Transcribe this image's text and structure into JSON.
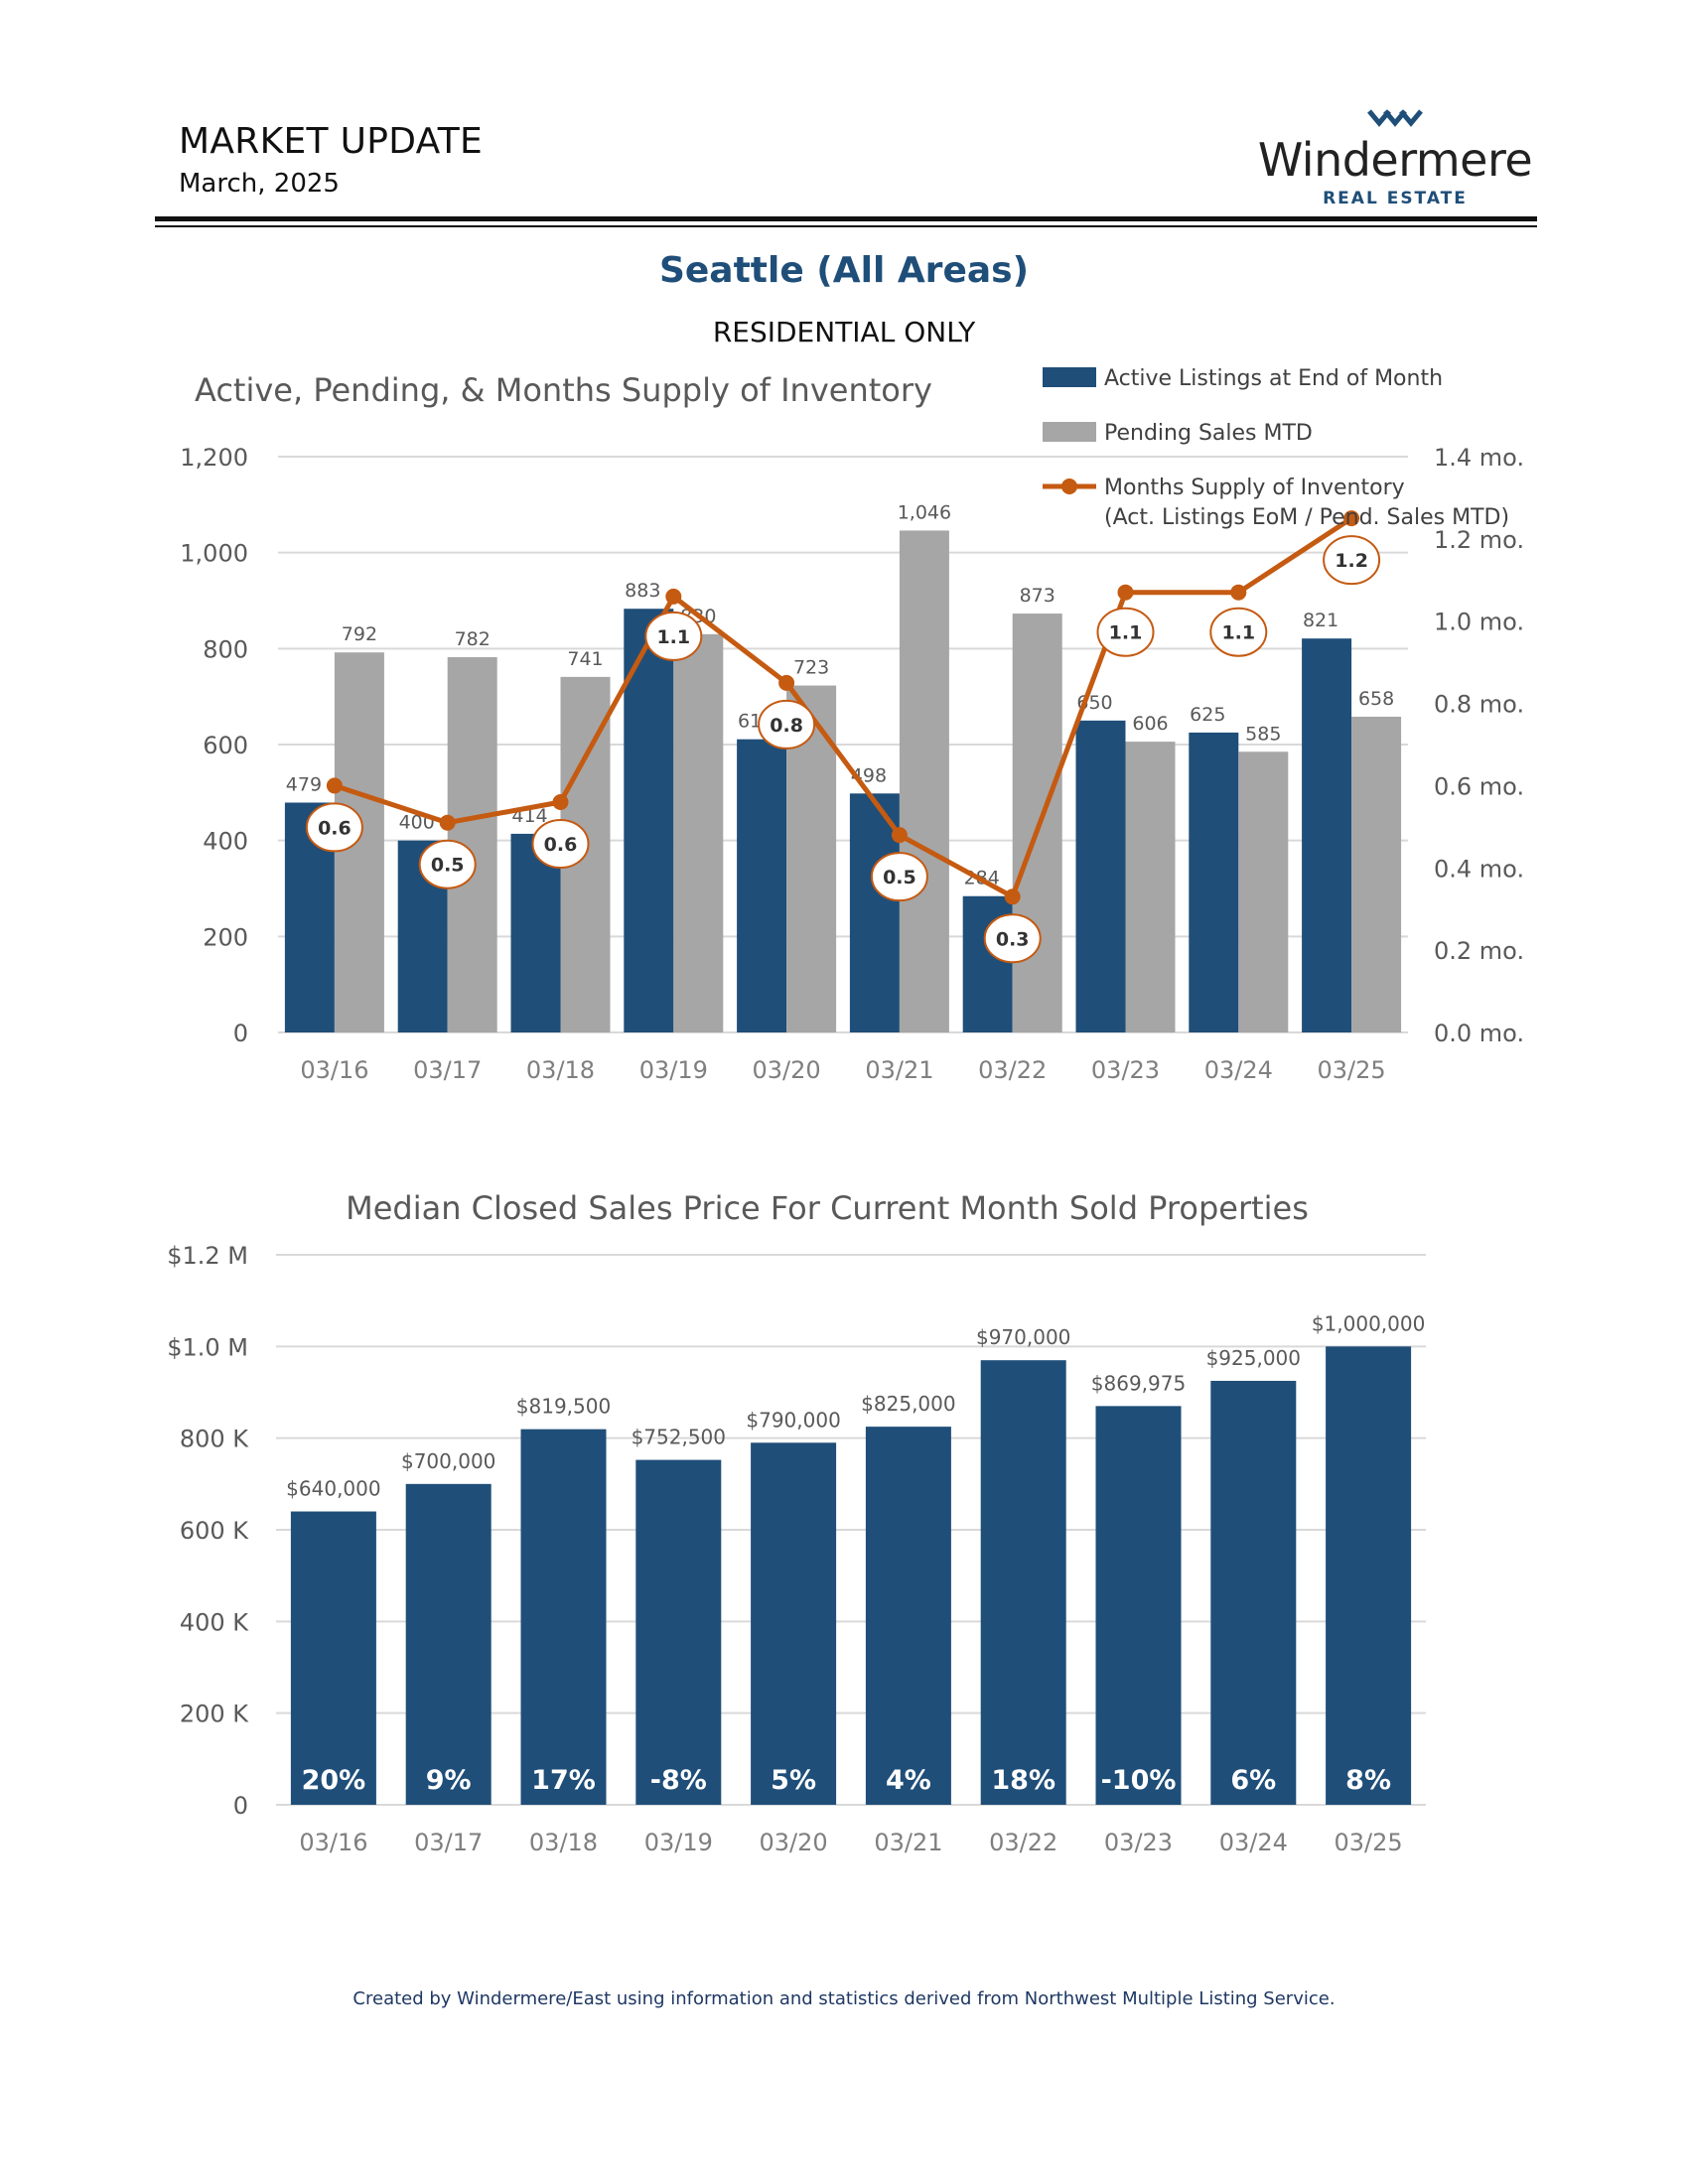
{
  "header": {
    "title": "MARKET UPDATE",
    "date": "March, 2025",
    "logo_word": "Windermere",
    "logo_sub": "REAL ESTATE",
    "area": "Seattle (All Areas)",
    "subhead": "RESIDENTIAL ONLY"
  },
  "colors": {
    "navy": "#1f4e79",
    "gray": "#a6a6a6",
    "orange": "#c55a11",
    "grid": "#d9d9d9"
  },
  "chart_data": [
    {
      "type": "bar",
      "title": "Active, Pending, & Months Supply of Inventory",
      "categories": [
        "03/16",
        "03/17",
        "03/18",
        "03/19",
        "03/20",
        "03/21",
        "03/22",
        "03/23",
        "03/24",
        "03/25"
      ],
      "series": [
        {
          "name": "Active Listings at End of Month",
          "type": "bar",
          "axis": "left",
          "values": [
            479,
            400,
            414,
            883,
            611,
            498,
            284,
            650,
            625,
            821
          ],
          "labels": [
            "479",
            "400",
            "414",
            "883",
            "611",
            "498",
            "284",
            "650",
            "625",
            "821"
          ]
        },
        {
          "name": "Pending Sales MTD",
          "type": "bar",
          "axis": "left",
          "values": [
            792,
            782,
            741,
            830,
            723,
            1046,
            873,
            606,
            585,
            658
          ],
          "labels": [
            "792",
            "782",
            "741",
            "830",
            "723",
            "1,046",
            "873",
            "606",
            "585",
            "658"
          ]
        },
        {
          "name": "Months Supply of Inventory (Act. Listings EoM / Pend. Sales MTD)",
          "legend_lines": [
            "Months Supply of Inventory",
            "(Act. Listings EoM / Pend. Sales MTD)"
          ],
          "type": "line",
          "axis": "right",
          "values": [
            0.6,
            0.51,
            0.56,
            1.06,
            0.85,
            0.48,
            0.33,
            1.07,
            1.07,
            1.25
          ],
          "labels": [
            "0.6",
            "0.5",
            "0.6",
            "1.1",
            "0.8",
            "0.5",
            "0.3",
            "1.1",
            "1.1",
            "1.2"
          ]
        }
      ],
      "left_axis": {
        "ylim": [
          0,
          1200
        ],
        "ticks": [
          0,
          200,
          400,
          600,
          800,
          1000,
          1200
        ],
        "tick_labels": [
          "0",
          "200",
          "400",
          "600",
          "800",
          "1,000",
          "1,200"
        ]
      },
      "right_axis": {
        "ylim": [
          0,
          1.4
        ],
        "ticks": [
          0,
          0.2,
          0.4,
          0.6,
          0.8,
          1.0,
          1.2,
          1.4
        ],
        "tick_labels": [
          "0.0 mo.",
          "0.2 mo.",
          "0.4 mo.",
          "0.6 mo.",
          "0.8 mo.",
          "1.0 mo.",
          "1.2 mo.",
          "1.4 mo."
        ]
      },
      "grid": true,
      "legend_position": "top-right"
    },
    {
      "type": "bar",
      "title": "Median Closed Sales Price For Current Month Sold Properties",
      "categories": [
        "03/16",
        "03/17",
        "03/18",
        "03/19",
        "03/20",
        "03/21",
        "03/22",
        "03/23",
        "03/24",
        "03/25"
      ],
      "values": [
        640000,
        700000,
        819500,
        752500,
        790000,
        825000,
        970000,
        869975,
        925000,
        1000000
      ],
      "value_labels": [
        "$640,000",
        "$700,000",
        "$819,500",
        "$752,500",
        "$790,000",
        "$825,000",
        "$970,000",
        "$869,975",
        "$925,000",
        "$1,000,000"
      ],
      "change_labels": [
        "20%",
        "9%",
        "17%",
        "-8%",
        "5%",
        "4%",
        "18%",
        "-10%",
        "6%",
        "8%"
      ],
      "ylim": [
        0,
        1200000
      ],
      "ticks": [
        0,
        200000,
        400000,
        600000,
        800000,
        1000000,
        1200000
      ],
      "tick_labels": [
        "0",
        "200 K",
        "400 K",
        "600 K",
        "800 K",
        "$1.0 M",
        "$1.2 M"
      ],
      "grid": true
    }
  ],
  "footer": "Created by Windermere/East using information and statistics derived from Northwest Multiple Listing Service."
}
